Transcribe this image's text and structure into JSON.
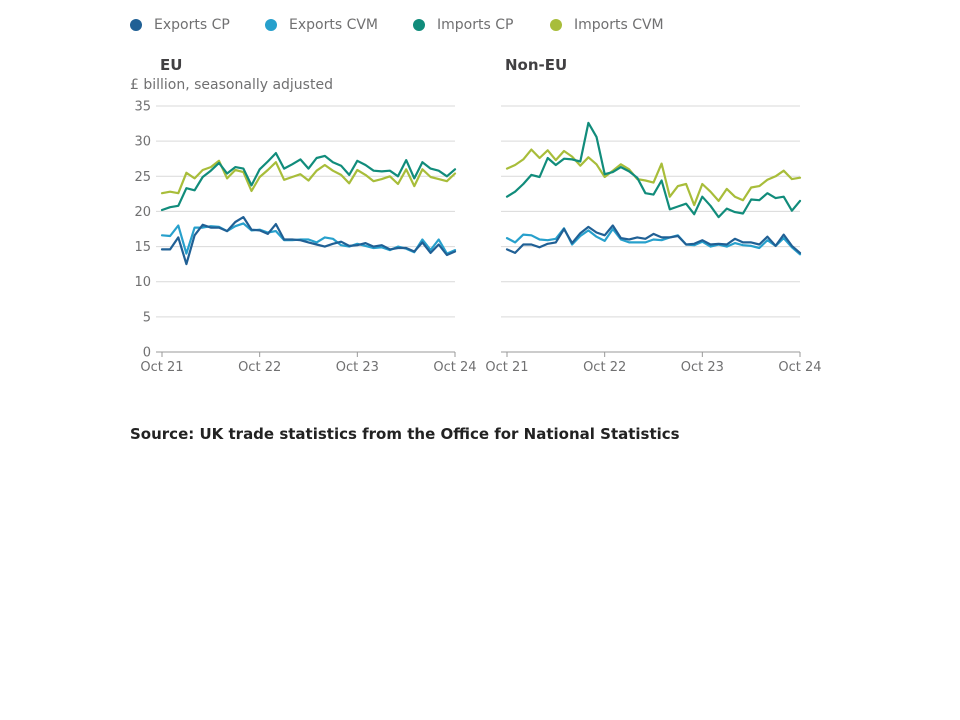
{
  "legend": [
    {
      "label": "Exports CP",
      "color": "#206095"
    },
    {
      "label": "Exports CVM",
      "color": "#27a0cc"
    },
    {
      "label": "Imports CP",
      "color": "#118c7b"
    },
    {
      "label": "Imports CVM",
      "color": "#a8bd3a"
    }
  ],
  "units_label": "£ billion, seasonally adjusted",
  "source": "Source: UK trade statistics from the Office for National Statistics",
  "chart_data": [
    {
      "type": "line",
      "title": "EU",
      "ylabel": "£ billion, seasonally adjusted",
      "ylim": [
        0,
        35
      ],
      "yticks": [
        0,
        5,
        10,
        15,
        20,
        25,
        30,
        35
      ],
      "x_start": "Oct 21",
      "x_end": "Oct 24",
      "xticks": [
        "Oct 21",
        "Oct 22",
        "Oct 23",
        "Oct 24"
      ],
      "grid": true,
      "series": [
        {
          "name": "Exports CP",
          "color": "#206095",
          "values": [
            14.6,
            14.6,
            16.3,
            12.5,
            16.6,
            18.1,
            17.7,
            17.7,
            17.2,
            18.5,
            19.2,
            17.4,
            17.3,
            16.8,
            18.2,
            16.0,
            16.0,
            15.9,
            15.6,
            15.3,
            15.0,
            15.4,
            15.7,
            15.1,
            15.2,
            15.5,
            15.0,
            15.2,
            14.6,
            14.8,
            14.8,
            14.3,
            15.6,
            14.1,
            15.3,
            13.8,
            14.3
          ]
        },
        {
          "name": "Exports CVM",
          "color": "#27a0cc",
          "values": [
            16.6,
            16.5,
            18.0,
            14.0,
            17.7,
            17.7,
            17.9,
            17.8,
            17.2,
            17.9,
            18.3,
            17.3,
            17.4,
            17.0,
            17.2,
            15.9,
            15.9,
            16.0,
            16.0,
            15.6,
            16.3,
            16.1,
            15.2,
            15.0,
            15.4,
            15.1,
            14.8,
            14.9,
            14.5,
            15.0,
            14.7,
            14.2,
            16.0,
            14.5,
            16.0,
            14.0,
            14.5
          ]
        },
        {
          "name": "Imports CP",
          "color": "#118c7b",
          "values": [
            20.2,
            20.6,
            20.8,
            23.3,
            23.0,
            24.9,
            25.8,
            26.9,
            25.4,
            26.3,
            26.1,
            23.7,
            26.0,
            27.1,
            28.3,
            26.1,
            26.7,
            27.4,
            26.1,
            27.6,
            27.9,
            27.0,
            26.5,
            25.2,
            27.2,
            26.6,
            25.8,
            25.7,
            25.8,
            25.0,
            27.3,
            24.7,
            27.0,
            26.1,
            25.8,
            25.0,
            26.0
          ]
        },
        {
          "name": "Imports CVM",
          "color": "#a8bd3a",
          "values": [
            22.6,
            22.8,
            22.6,
            25.5,
            24.7,
            25.9,
            26.3,
            27.2,
            24.7,
            25.9,
            25.6,
            22.9,
            24.9,
            25.9,
            27.0,
            24.5,
            24.9,
            25.3,
            24.4,
            25.8,
            26.6,
            25.8,
            25.2,
            24.0,
            25.9,
            25.2,
            24.3,
            24.6,
            25.0,
            23.9,
            26.0,
            23.6,
            26.0,
            24.9,
            24.6,
            24.3,
            25.4
          ]
        }
      ]
    },
    {
      "type": "line",
      "title": "Non-EU",
      "ylim": [
        0,
        35
      ],
      "yticks": [
        0,
        5,
        10,
        15,
        20,
        25,
        30,
        35
      ],
      "x_start": "Oct 21",
      "x_end": "Oct 24",
      "xticks": [
        "Oct 21",
        "Oct 22",
        "Oct 23",
        "Oct 24"
      ],
      "grid": true,
      "series": [
        {
          "name": "Exports CP",
          "color": "#206095",
          "values": [
            14.6,
            14.1,
            15.3,
            15.3,
            14.9,
            15.4,
            15.6,
            17.5,
            15.5,
            16.9,
            17.8,
            17.0,
            16.6,
            18.0,
            16.2,
            16.0,
            16.3,
            16.1,
            16.8,
            16.3,
            16.3,
            16.5,
            15.3,
            15.4,
            15.9,
            15.3,
            15.4,
            15.3,
            16.1,
            15.6,
            15.6,
            15.3,
            16.4,
            15.1,
            16.7,
            15.1,
            14.1
          ]
        },
        {
          "name": "Exports CVM",
          "color": "#27a0cc",
          "values": [
            16.2,
            15.6,
            16.7,
            16.6,
            16.0,
            15.9,
            16.1,
            17.6,
            15.3,
            16.5,
            17.3,
            16.4,
            15.8,
            17.5,
            16.0,
            15.6,
            15.6,
            15.6,
            16.0,
            15.9,
            16.3,
            16.6,
            15.3,
            15.2,
            15.7,
            15.0,
            15.3,
            15.0,
            15.5,
            15.2,
            15.1,
            14.8,
            15.9,
            15.1,
            16.2,
            14.9,
            13.9
          ]
        },
        {
          "name": "Imports CP",
          "color": "#118c7b",
          "values": [
            22.1,
            22.8,
            23.9,
            25.2,
            24.9,
            27.6,
            26.6,
            27.5,
            27.4,
            27.1,
            32.6,
            30.6,
            25.3,
            25.6,
            26.3,
            25.7,
            24.8,
            22.6,
            22.4,
            24.4,
            20.3,
            20.7,
            21.1,
            19.6,
            22.1,
            20.8,
            19.2,
            20.4,
            19.9,
            19.7,
            21.7,
            21.6,
            22.6,
            21.9,
            22.1,
            20.1,
            21.5
          ]
        },
        {
          "name": "Imports CVM",
          "color": "#a8bd3a",
          "values": [
            26.1,
            26.6,
            27.4,
            28.8,
            27.6,
            28.7,
            27.3,
            28.6,
            27.8,
            26.5,
            27.7,
            26.7,
            24.9,
            25.8,
            26.7,
            26.0,
            24.6,
            24.4,
            24.1,
            26.8,
            22.1,
            23.6,
            23.9,
            20.9,
            23.9,
            22.8,
            21.5,
            23.2,
            22.1,
            21.6,
            23.4,
            23.6,
            24.5,
            25.0,
            25.8,
            24.6,
            24.8
          ]
        }
      ]
    }
  ]
}
